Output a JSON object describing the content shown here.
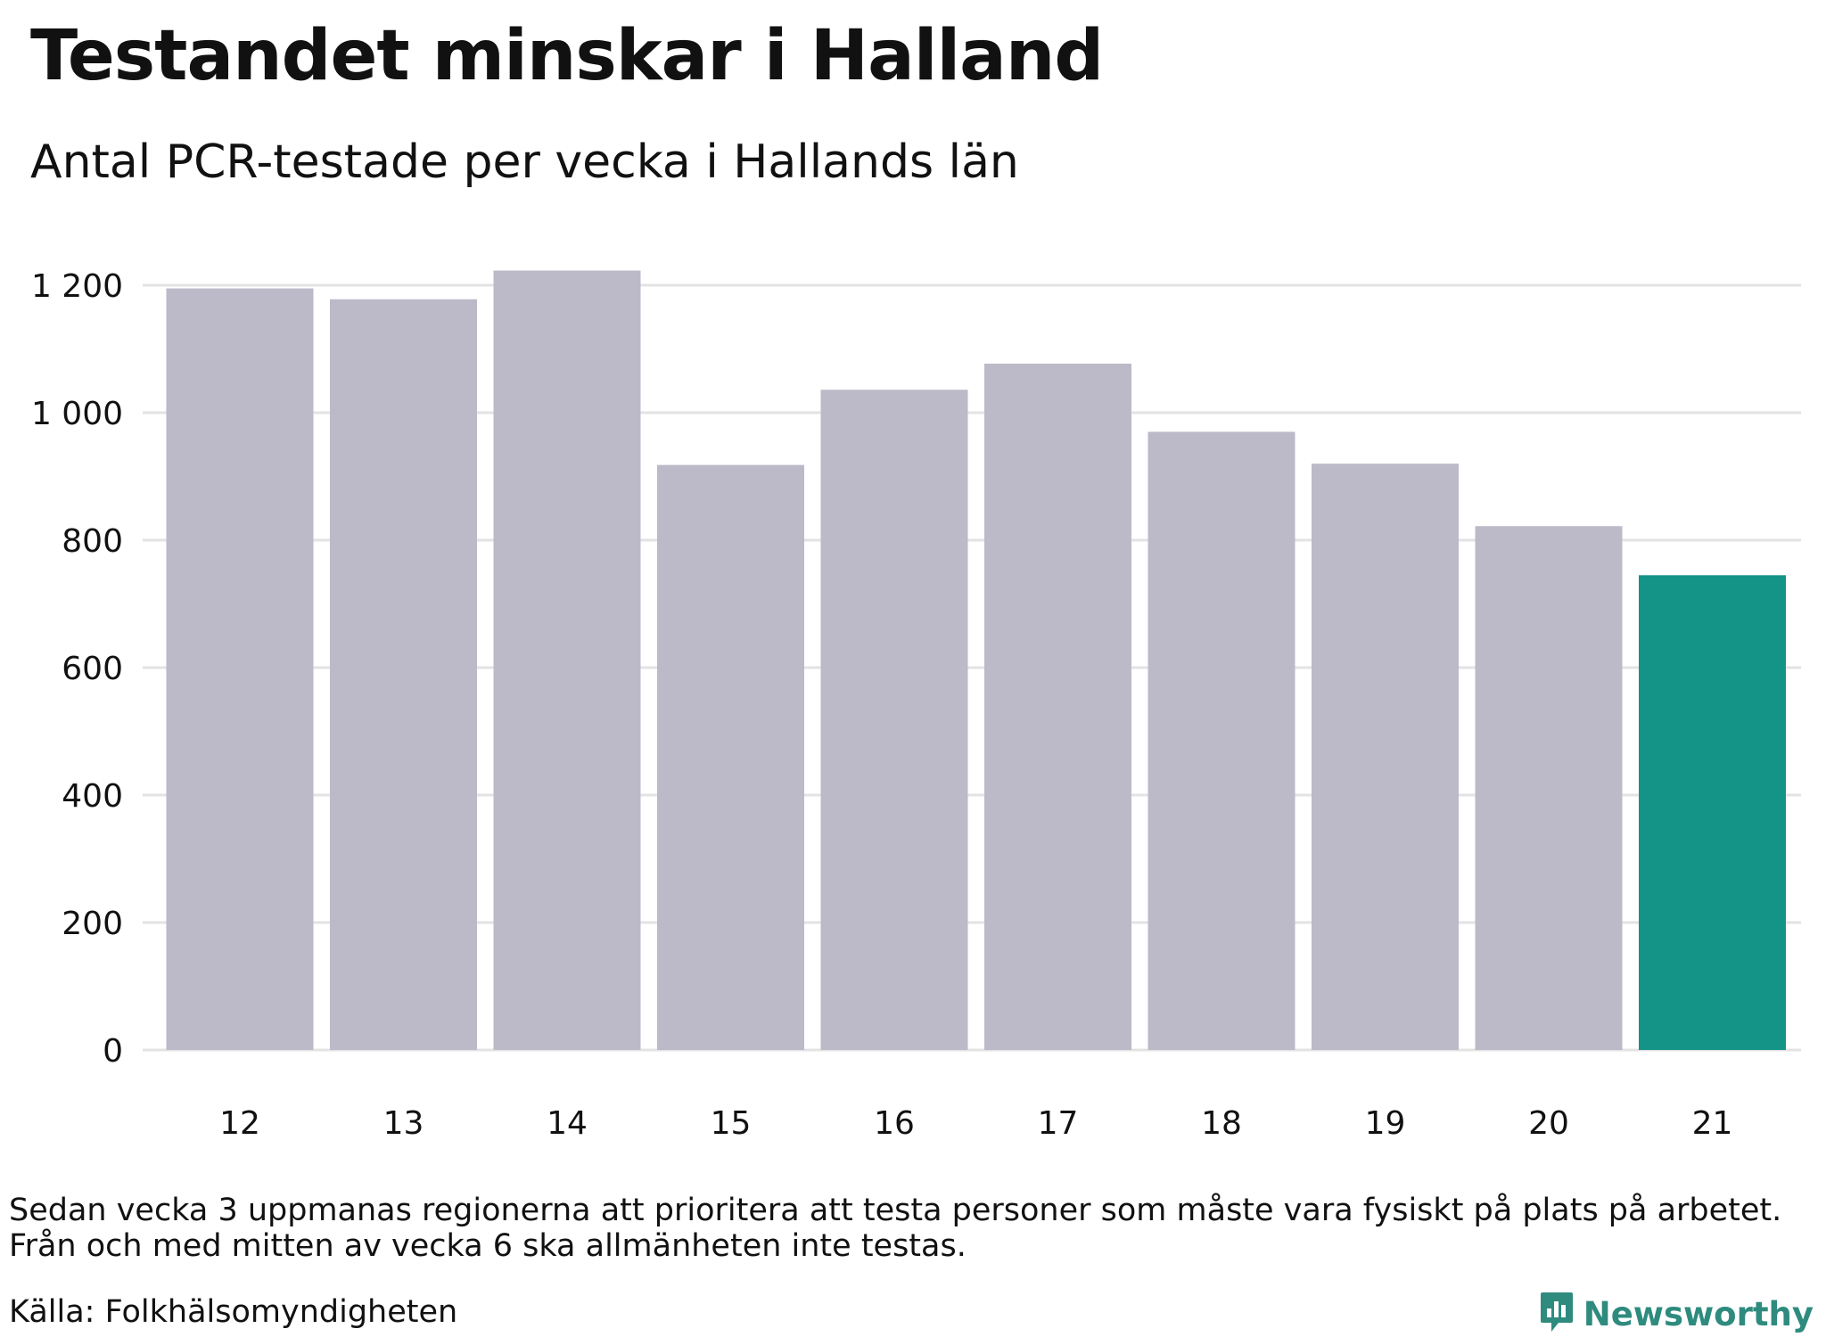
{
  "title": "Testandet minskar i Halland",
  "subtitle": "Antal PCR-testade per vecka i Hallands län",
  "note_lines": [
    "Sedan vecka 3 uppmanas regionerna att prioritera att testa personer som måste vara fysiskt på plats på arbetet.",
    "Från och med mitten av vecka 6 ska allmänheten inte testas."
  ],
  "source": "Källa: Folkhälsomyndigheten",
  "brand": {
    "name": "Newsworthy",
    "icon": "newsworthy-logo-icon"
  },
  "colors": {
    "bar": "#bcbac8",
    "highlight": "#149487",
    "grid": "#e3e3e3",
    "text": "#111111",
    "brand": "#2e8b7e"
  },
  "chart_data": {
    "type": "bar",
    "title": "Testandet minskar i Halland",
    "subtitle": "Antal PCR-testade per vecka i Hallands län",
    "xlabel": "",
    "ylabel": "",
    "categories": [
      "12",
      "13",
      "14",
      "15",
      "16",
      "17",
      "18",
      "19",
      "20",
      "21"
    ],
    "values": [
      1195,
      1178,
      1223,
      918,
      1036,
      1077,
      970,
      920,
      822,
      745
    ],
    "highlight_index": 9,
    "ylim": [
      0,
      1200
    ],
    "yticks": [
      0,
      200,
      400,
      600,
      800,
      1000,
      1200
    ],
    "ytick_labels": [
      "0",
      "200",
      "400",
      "600",
      "800",
      "1 000",
      "1 200"
    ],
    "grid": "horizontal",
    "legend": "none"
  }
}
